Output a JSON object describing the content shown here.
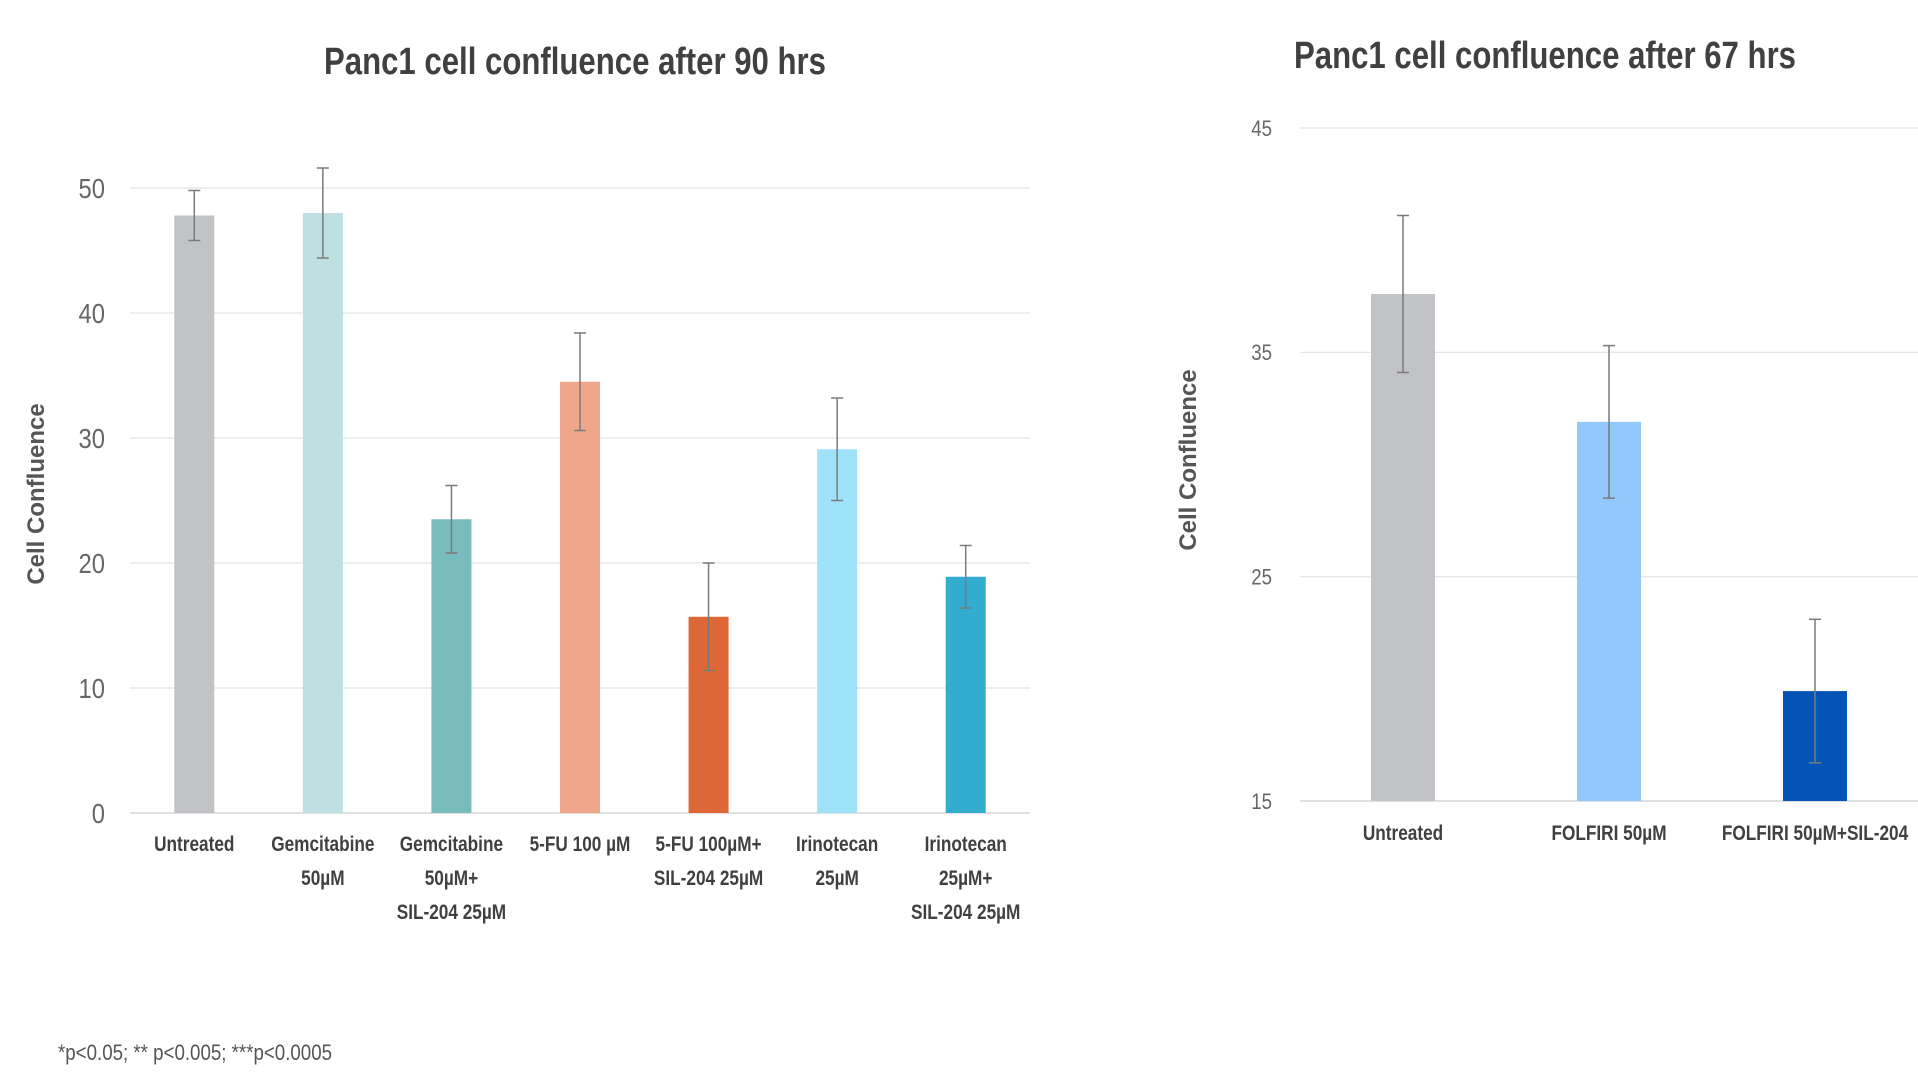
{
  "chart_data": [
    {
      "type": "bar",
      "title": "Panc1 cell confluence after 90 hrs",
      "xlabel": "",
      "ylabel": "Cell Confluence",
      "ylim": [
        0,
        50
      ],
      "yticks": [
        0,
        10,
        20,
        30,
        40,
        50
      ],
      "grid": true,
      "categories": [
        [
          "Untreated"
        ],
        [
          "Gemcitabine",
          "50µM"
        ],
        [
          "Gemcitabine",
          "50µM+",
          "SIL-204 25µM"
        ],
        [
          "5-FU 100 µM"
        ],
        [
          "5-FU 100µM+",
          "SIL-204 25µM"
        ],
        [
          "Irinotecan",
          "25µM"
        ],
        [
          "Irinotecan",
          "25µM+",
          "SIL-204 25µM"
        ]
      ],
      "values": [
        47.8,
        48.0,
        23.5,
        34.5,
        15.7,
        29.1,
        18.9
      ],
      "errors": [
        2.0,
        3.6,
        2.7,
        3.9,
        4.3,
        4.1,
        2.5
      ],
      "colors": [
        "#c2c3c6",
        "#bfe0e2",
        "#79bcbe",
        "#efa68a",
        "#dd6737",
        "#9fe3fb",
        "#33adcf"
      ]
    },
    {
      "type": "bar",
      "title": "Panc1 cell confluence after 67 hrs",
      "xlabel": "",
      "ylabel": "Cell Confluence",
      "ylim": [
        15,
        45
      ],
      "yticks": [
        15,
        25,
        35,
        45
      ],
      "grid": true,
      "categories": [
        [
          "Untreated"
        ],
        [
          "FOLFIRI 50µM"
        ],
        [
          "FOLFIRI 50µM+SIL-204"
        ]
      ],
      "values": [
        37.6,
        31.9,
        19.9
      ],
      "errors": [
        3.5,
        3.4,
        3.2
      ],
      "colors": [
        "#c2c3c6",
        "#92c8fb",
        "#0454b7"
      ]
    }
  ],
  "footnote": "*p<0.05; ** p<0.005; ***p<0.0005"
}
